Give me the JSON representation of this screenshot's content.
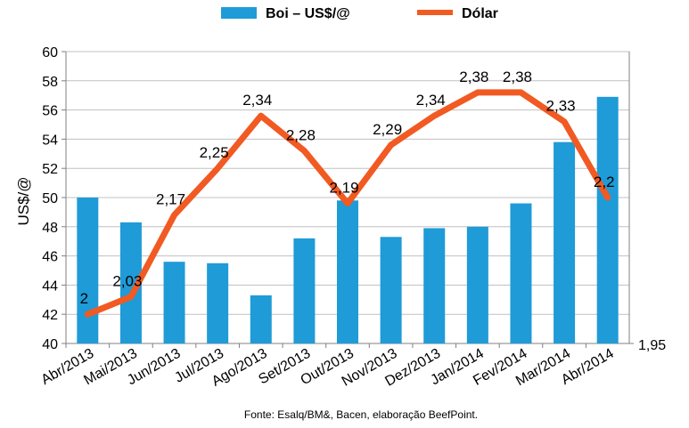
{
  "chart_data": {
    "type": "bar-line",
    "categories": [
      "Abr/2013",
      "Mai/2013",
      "Jun/2013",
      "Jul/2013",
      "Ago/2013",
      "Set/2013",
      "Out/2013",
      "Nov/2013",
      "Dez/2013",
      "Jan/2014",
      "Fev/2014",
      "Mar/2014",
      "Abr/2014"
    ],
    "series": [
      {
        "name": "Boi – US$/@",
        "type": "bar",
        "axis": "left",
        "color": "#1f9bd7",
        "values": [
          50.0,
          48.3,
          45.6,
          45.5,
          43.3,
          47.2,
          49.8,
          47.3,
          47.9,
          48.0,
          49.6,
          53.8,
          56.9
        ]
      },
      {
        "name": "Dólar",
        "type": "line",
        "axis": "right",
        "color": "#f15a22",
        "values": [
          2,
          2.03,
          2.17,
          2.25,
          2.34,
          2.28,
          2.19,
          2.29,
          2.34,
          2.38,
          2.38,
          2.33,
          2.2
        ],
        "labels": [
          "2",
          "2,03",
          "2,17",
          "2,25",
          "2,34",
          "2,28",
          "2,19",
          "2,29",
          "2,34",
          "2,38",
          "2,38",
          "2,33",
          "2,2"
        ]
      }
    ],
    "ylabel": "US$/@",
    "ylim": [
      40,
      60
    ],
    "yticks": [
      "40",
      "42",
      "44",
      "46",
      "48",
      "50",
      "52",
      "54",
      "56",
      "58",
      "60"
    ],
    "y2_visible_tick": "1,95",
    "legend": "top",
    "grid": true,
    "source": "Fonte: Esalq/BM&, Bacen, elaboração BeefPoint."
  }
}
